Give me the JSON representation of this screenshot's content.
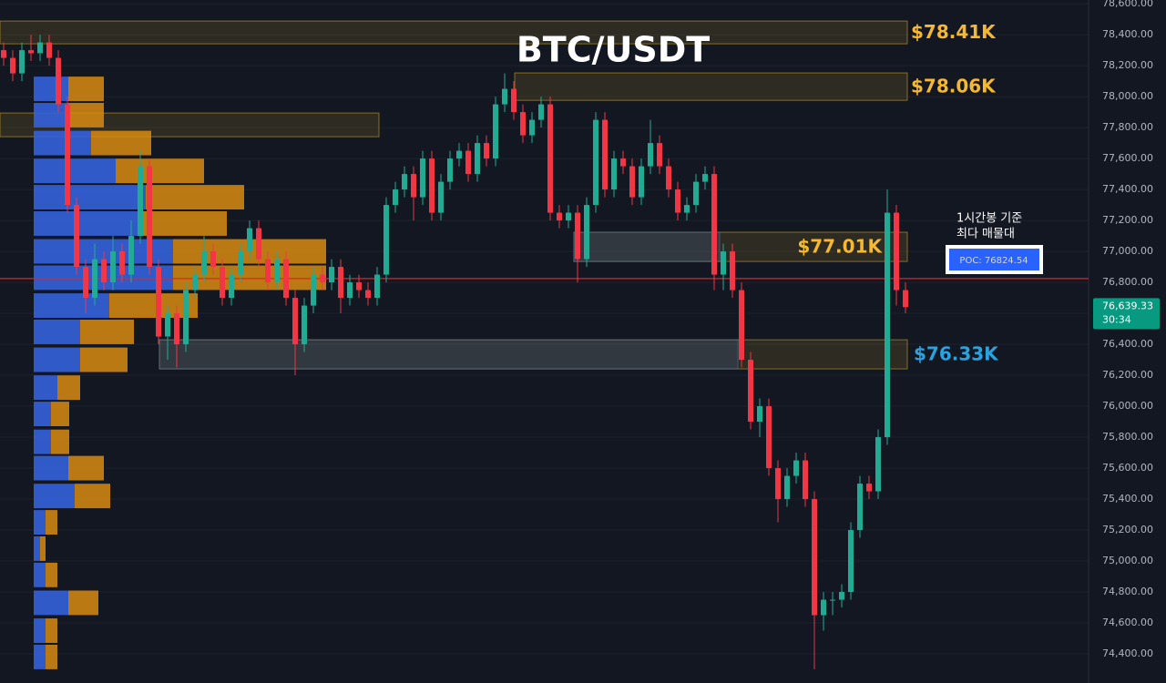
{
  "chart_data": {
    "type": "candlestick",
    "title": "BTC/USDT",
    "open": [
      78300,
      78250,
      78150,
      78300,
      78280,
      78350,
      78250,
      77950,
      77300,
      76900,
      76700,
      76950,
      76800,
      77000,
      76850,
      77100,
      77550,
      76900,
      76450,
      76600,
      76400,
      76750,
      76850,
      77000,
      76900,
      76700,
      76850,
      77000,
      77150,
      76950,
      76800,
      76950,
      76700,
      76400,
      76650,
      76850,
      76800,
      76900,
      76700,
      76800,
      76750,
      76700,
      76850,
      77300,
      77400,
      77500,
      77350,
      77600,
      77250,
      77450,
      77600,
      77650,
      77500,
      77700,
      77600,
      77950,
      78050,
      77900,
      77750,
      77850,
      77950,
      77250,
      77200,
      77250,
      76950,
      77300,
      77850,
      77400,
      77600,
      77550,
      77350,
      77550,
      77700,
      77550,
      77400,
      77250,
      77300,
      77450,
      77500,
      76850,
      77000,
      76750,
      76300,
      75900,
      76000,
      75600,
      75400,
      75550,
      75650,
      75400,
      74650,
      74750,
      74750,
      74800,
      75200,
      75500,
      75450,
      75800,
      77250,
      76750
    ],
    "high": [
      78350,
      78300,
      78350,
      78400,
      78400,
      78400,
      78300,
      78000,
      77350,
      76950,
      77050,
      77000,
      77100,
      77050,
      77200,
      77650,
      77600,
      76950,
      76650,
      76650,
      76800,
      76900,
      77100,
      77050,
      76950,
      76900,
      77050,
      77200,
      77200,
      77000,
      77000,
      77000,
      76750,
      76700,
      76900,
      76900,
      76950,
      76950,
      76850,
      76850,
      76800,
      76900,
      77350,
      77450,
      77550,
      77550,
      77650,
      77650,
      77500,
      77650,
      77700,
      77700,
      77750,
      77750,
      78000,
      78150,
      78100,
      77950,
      77900,
      78000,
      78000,
      77300,
      77300,
      77300,
      77350,
      77900,
      77900,
      77650,
      77650,
      77600,
      77600,
      77850,
      77750,
      77600,
      77450,
      77350,
      77500,
      77550,
      77550,
      77050,
      77050,
      76800,
      76350,
      76050,
      76050,
      75650,
      75600,
      75700,
      75700,
      75450,
      74800,
      74800,
      74850,
      75250,
      75550,
      75550,
      75850,
      77400,
      77300,
      76800
    ],
    "low": [
      78200,
      78100,
      78100,
      78230,
      78230,
      78200,
      77900,
      77250,
      76850,
      76600,
      76650,
      76750,
      76750,
      76800,
      76800,
      77050,
      76850,
      76400,
      76300,
      76250,
      76350,
      76700,
      76800,
      76850,
      76650,
      76650,
      76800,
      76950,
      76900,
      76750,
      76750,
      76650,
      76200,
      76350,
      76600,
      76750,
      76750,
      76600,
      76650,
      76700,
      76650,
      76650,
      76800,
      77250,
      77350,
      77200,
      77300,
      77200,
      77200,
      77400,
      77550,
      77450,
      77450,
      77550,
      77550,
      77900,
      77850,
      77700,
      77700,
      77800,
      77200,
      77150,
      77150,
      76800,
      76900,
      77250,
      77350,
      77350,
      77500,
      77300,
      77300,
      77500,
      77500,
      77350,
      77200,
      77200,
      77250,
      77400,
      76750,
      76750,
      76700,
      76250,
      75850,
      75800,
      75550,
      75250,
      75350,
      75500,
      75350,
      74300,
      74550,
      74650,
      74700,
      74750,
      75150,
      75400,
      75400,
      75750,
      76650,
      76600
    ],
    "close": [
      78250,
      78150,
      78300,
      78280,
      78350,
      78250,
      77950,
      77300,
      76900,
      76700,
      76950,
      76800,
      77000,
      76850,
      77100,
      77550,
      76900,
      76450,
      76600,
      76400,
      76750,
      76850,
      77000,
      76900,
      76700,
      76850,
      77000,
      77150,
      76950,
      76800,
      76950,
      76700,
      76400,
      76650,
      76850,
      76800,
      76900,
      76700,
      76800,
      76750,
      76700,
      76850,
      77300,
      77400,
      77500,
      77350,
      77600,
      77250,
      77450,
      77600,
      77650,
      77500,
      77700,
      77600,
      77950,
      78050,
      77900,
      77750,
      77850,
      77950,
      77250,
      77200,
      77250,
      76950,
      77300,
      77850,
      77400,
      77600,
      77550,
      77350,
      77550,
      77700,
      77550,
      77400,
      77250,
      77300,
      77450,
      77500,
      76850,
      77000,
      76750,
      76300,
      75900,
      76000,
      75600,
      75400,
      75550,
      75650,
      75400,
      74650,
      74750,
      74750,
      74800,
      75200,
      75500,
      75450,
      75800,
      77250,
      76750,
      76640
    ],
    "up_color": "#22ab94",
    "down_color": "#f23645",
    "ylim": [
      74212,
      78624
    ],
    "yticks": [
      {
        "value": 78600,
        "label": "78,600.00"
      },
      {
        "value": 78400,
        "label": "78,400.00"
      },
      {
        "value": 78200,
        "label": "78,200.00"
      },
      {
        "value": 78000,
        "label": "78,000.00"
      },
      {
        "value": 77800,
        "label": "77,800.00"
      },
      {
        "value": 77600,
        "label": "77,600.00"
      },
      {
        "value": 77400,
        "label": "77,400.00"
      },
      {
        "value": 77200,
        "label": "77,200.00"
      },
      {
        "value": 77000,
        "label": "77,000.00"
      },
      {
        "value": 76800,
        "label": "76,800.00"
      },
      {
        "value": 76600,
        "label": "76,600.00"
      },
      {
        "value": 76400,
        "label": "76,400.00"
      },
      {
        "value": 76200,
        "label": "76,200.00"
      },
      {
        "value": 76000,
        "label": "76,000.00"
      },
      {
        "value": 75800,
        "label": "75,800.00"
      },
      {
        "value": 75600,
        "label": "75,600.00"
      },
      {
        "value": 75400,
        "label": "75,400.00"
      },
      {
        "value": 75200,
        "label": "75,200.00"
      },
      {
        "value": 75000,
        "label": "75,000.00"
      },
      {
        "value": 74800,
        "label": "74,800.00"
      },
      {
        "value": 74600,
        "label": "74,600.00"
      },
      {
        "value": 74400,
        "label": "74,400.00"
      }
    ],
    "grid": true,
    "volume_profile": {
      "prices": [
        78050,
        77880,
        77700,
        77520,
        77350,
        77180,
        77000,
        76830,
        76650,
        76480,
        76300,
        76120,
        75950,
        75770,
        75600,
        75420,
        75250,
        75080,
        74910,
        74730,
        74550,
        74380
      ],
      "buy": [
        38,
        38,
        63,
        90,
        123,
        118,
        153,
        153,
        83,
        51,
        51,
        26,
        19,
        19,
        38,
        45,
        13,
        7,
        13,
        38,
        13,
        13
      ],
      "sell": [
        39,
        39,
        66,
        97,
        108,
        94,
        168,
        168,
        97,
        59,
        52,
        25,
        20,
        20,
        39,
        39,
        13,
        6,
        13,
        33,
        13,
        13
      ],
      "buy_color": "#3562dc",
      "sell_color": "#d98b12"
    },
    "zones": [
      {
        "label": "$78.41K",
        "low": 78341,
        "high": 78488,
        "color": "#c9a227",
        "label_color": "#f5b82e"
      },
      {
        "label": "$78.06K",
        "low": 77976,
        "high": 78153,
        "color": "#c9a227",
        "label_color": "#f5b82e"
      },
      {
        "low": 77741,
        "high": 77894,
        "color": "#c9a227"
      },
      {
        "label": "$77.01K",
        "low": 76935,
        "high": 77124,
        "color": "#c9a227",
        "label_color": "#f5b82e"
      },
      {
        "label": "$76.33K",
        "low": 76241,
        "high": 76429,
        "color": "#c9a227",
        "label_color": "#29a3e0"
      }
    ],
    "poc": {
      "value": 76824.54,
      "label": "POC: 76824.54",
      "color": "#e02424"
    },
    "annotation": [
      "1시간봉 기준",
      "최다 매물대"
    ],
    "current_price": {
      "value": 76639.33,
      "label": "76,639.33"
    },
    "countdown": "30:34"
  }
}
